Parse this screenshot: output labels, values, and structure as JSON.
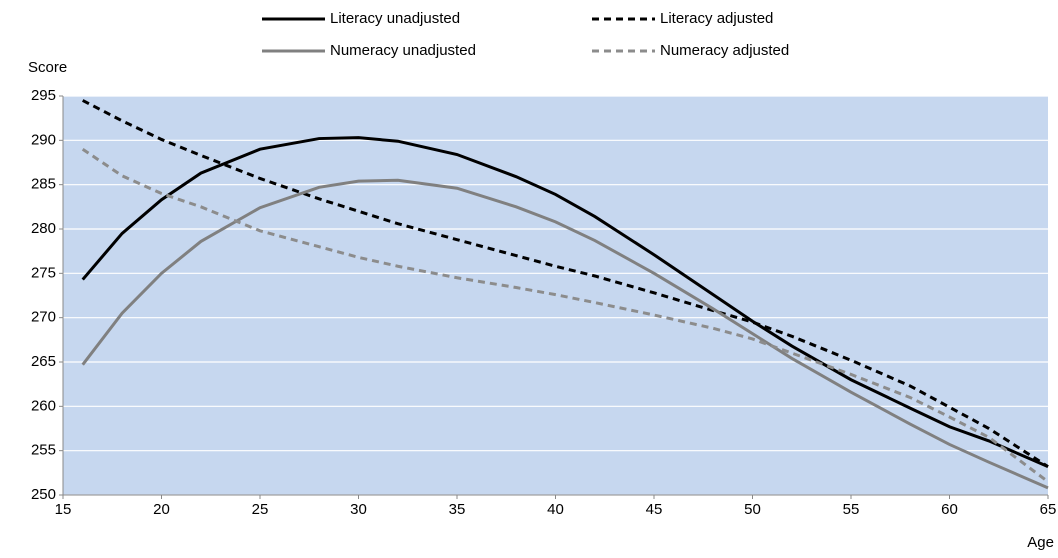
{
  "chart_data": {
    "type": "line",
    "y_label": "Score",
    "x_label": "Age",
    "x": [
      16,
      18,
      20,
      22,
      25,
      28,
      30,
      32,
      35,
      38,
      40,
      42,
      45,
      48,
      50,
      52,
      55,
      58,
      60,
      62,
      65
    ],
    "series": [
      {
        "name": "Literacy unadjusted",
        "color": "#000000",
        "dash": false,
        "values": [
          274.3,
          279.5,
          283.3,
          286.3,
          289,
          290.2,
          290.3,
          289.9,
          288.4,
          285.9,
          283.9,
          281.4,
          277.1,
          272.6,
          269.6,
          266.8,
          263,
          259.8,
          257.7,
          256.1,
          253.2
        ]
      },
      {
        "name": "Literacy adjusted",
        "color": "#000000",
        "dash": true,
        "values": [
          294.5,
          292.2,
          290.1,
          288.3,
          285.7,
          283.4,
          282,
          280.6,
          278.8,
          277,
          275.8,
          274.7,
          272.8,
          270.8,
          269.5,
          267.9,
          265.2,
          262.3,
          259.9,
          257.5,
          253.2
        ]
      },
      {
        "name": "Numeracy unadjusted",
        "color": "#808080",
        "dash": false,
        "values": [
          264.7,
          270.5,
          275,
          278.6,
          282.4,
          284.7,
          285.4,
          285.5,
          284.6,
          282.5,
          280.8,
          278.7,
          275,
          271,
          268.2,
          265.4,
          261.6,
          258,
          255.7,
          253.7,
          250.8
        ]
      },
      {
        "name": "Numeracy adjusted",
        "color": "#8c8c8c",
        "dash": true,
        "values": [
          289,
          286,
          284,
          282.5,
          279.8,
          278,
          276.8,
          275.8,
          274.5,
          273.4,
          272.6,
          271.7,
          270.3,
          268.8,
          267.6,
          266,
          263.6,
          261,
          258.8,
          256.5,
          251.5
        ]
      }
    ],
    "xlim": [
      15,
      65
    ],
    "xticks": [
      15,
      20,
      25,
      30,
      35,
      40,
      45,
      50,
      55,
      60,
      65
    ],
    "ylim": [
      250,
      295
    ],
    "yticks": [
      250,
      255,
      260,
      265,
      270,
      275,
      280,
      285,
      290,
      295
    ],
    "grid": true,
    "background": "#c6d7ef",
    "legend": "top"
  }
}
